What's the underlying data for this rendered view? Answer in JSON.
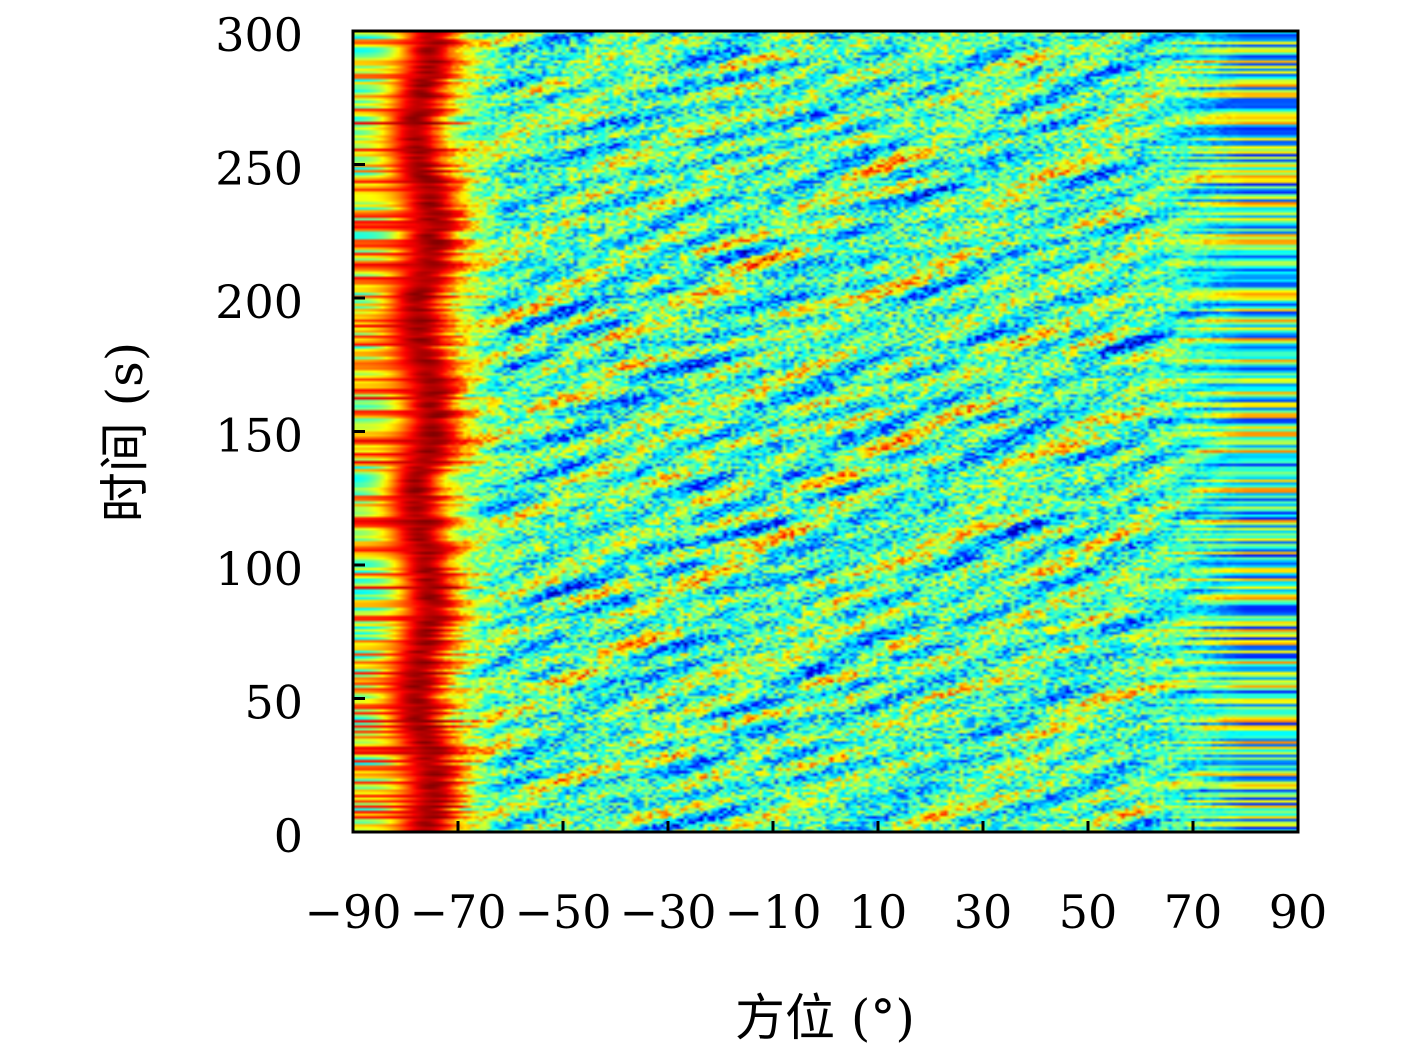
{
  "chart_data": {
    "type": "heatmap",
    "xlabel": "方位 (°)",
    "ylabel": "时间 (s)",
    "xlim": [
      -90,
      90
    ],
    "ylim": [
      0,
      300
    ],
    "x_ticks": [
      -90,
      -70,
      -50,
      -30,
      -10,
      10,
      30,
      50,
      70,
      90
    ],
    "x_tick_labels": [
      "−90",
      "−70",
      "−50",
      "−30",
      "−10",
      "10",
      "30",
      "50",
      "70",
      "90"
    ],
    "y_ticks": [
      0,
      50,
      100,
      150,
      200,
      250,
      300
    ],
    "y_tick_labels": [
      "0",
      "50",
      "100",
      "150",
      "200",
      "250",
      "300"
    ],
    "colormap": "jet",
    "colormap_stops": [
      "#00008f",
      "#0000ff",
      "#00ffff",
      "#ffff00",
      "#ff0000",
      "#800000"
    ],
    "features": {
      "dominant_track_azimuth": -76,
      "dominant_track_halfwidth": 7,
      "dominant_track_time_range": [
        0,
        300
      ],
      "right_edge_band_azimuth_range": [
        60,
        90
      ]
    },
    "grid": false
  }
}
